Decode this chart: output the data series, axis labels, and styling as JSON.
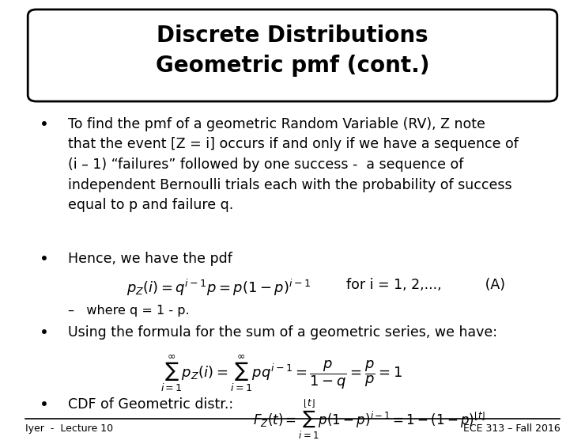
{
  "title_line1": "Discrete Distributions",
  "title_line2": "Geometric pmf (cont.)",
  "bg_color": "#ffffff",
  "text_color": "#000000",
  "footer_left": "Iyer  -  Lecture 10",
  "footer_right": "ECE 313 – Fall 2016",
  "bullet1_line1": "To find the pmf of a geometric Random Variable (RV), Z note",
  "bullet1_line2": "that the event [Z = i] occurs if and only if we have a sequence of",
  "bullet1_line3": "(i – 1) “failures” followed by one success -  a sequence of",
  "bullet1_line4": "independent Bernoulli trials each with the probability of success",
  "bullet1_line5": "equal to p and failure q.",
  "bullet2": "Hence, we have the pdf",
  "formula_pmf": "$p_Z(i) = q^{i-1}p = p(1-p)^{i-1}$",
  "formula_pmf_rhs": "for i = 1, 2,...,          (A)",
  "sub_bullet": "–   where q = 1 - p.",
  "bullet3": "Using the formula for the sum of a geometric series, we have:",
  "formula_sum": "$\\sum_{i=1}^{\\infty} p_Z(i) = \\sum_{i=1}^{\\infty} pq^{i-1} = \\dfrac{p}{1-q} = \\dfrac{p}{p} = 1$",
  "bullet4_text": "CDF of Geometric distr.:  ",
  "formula_cdf": "$F_Z(t) = \\sum_{i=1}^{\\lfloor t \\rfloor} p(1-p)^{i-1} = 1-(1-p)^{\\lfloor t \\rfloor}$",
  "font_size_title": 20,
  "font_size_body": 12.5,
  "font_size_footer": 9,
  "font_size_formula": 13,
  "font_size_formula_sm": 12
}
